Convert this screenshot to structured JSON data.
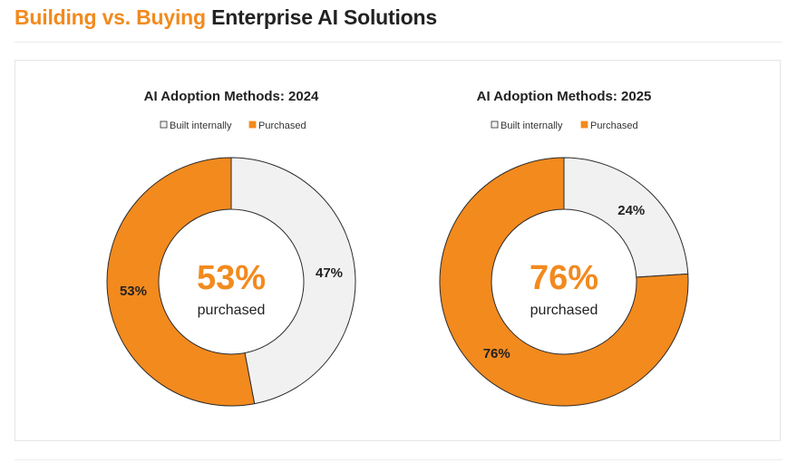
{
  "page": {
    "title_accent": "Building vs. Buying",
    "title_rest": "Enterprise AI Solutions"
  },
  "colors": {
    "accent": "#f28a1e",
    "built": "#f1f1f1",
    "stroke": "#2b2b2b",
    "text": "#222222"
  },
  "chart_data": [
    {
      "type": "pie",
      "variant": "donut",
      "title": "AI Adoption Methods: 2024",
      "legend": [
        {
          "label": "Built internally",
          "key": "built"
        },
        {
          "label": "Purchased",
          "key": "purchased"
        }
      ],
      "slices": [
        {
          "label": "Built internally",
          "key": "built",
          "value": 47,
          "data_label": "47%"
        },
        {
          "label": "Purchased",
          "key": "purchased",
          "value": 53,
          "data_label": "53%"
        }
      ],
      "center_value": "53%",
      "center_caption": "purchased"
    },
    {
      "type": "pie",
      "variant": "donut",
      "title": "AI Adoption Methods: 2025",
      "legend": [
        {
          "label": "Built internally",
          "key": "built"
        },
        {
          "label": "Purchased",
          "key": "purchased"
        }
      ],
      "slices": [
        {
          "label": "Built internally",
          "key": "built",
          "value": 24,
          "data_label": "24%"
        },
        {
          "label": "Purchased",
          "key": "purchased",
          "value": 76,
          "data_label": "76%"
        }
      ],
      "center_value": "76%",
      "center_caption": "purchased"
    }
  ]
}
